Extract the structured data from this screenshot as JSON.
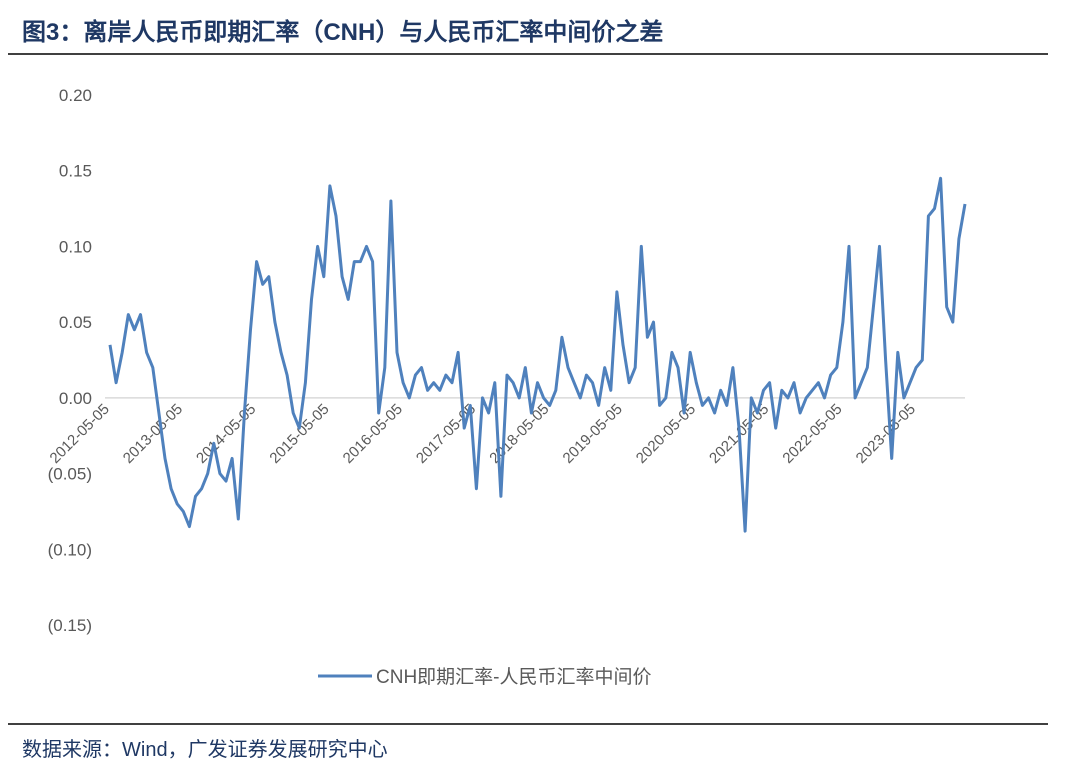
{
  "header": {
    "title": "图3：离岸人民币即期汇率（CNH）与人民币汇率中间价之差"
  },
  "chart_data": {
    "type": "line",
    "categories": [
      "2012-05-05",
      null,
      null,
      null,
      null,
      null,
      null,
      null,
      null,
      null,
      null,
      null,
      "2013-05-05",
      null,
      null,
      null,
      null,
      null,
      null,
      null,
      null,
      null,
      null,
      null,
      "2014-05-05",
      null,
      null,
      null,
      null,
      null,
      null,
      null,
      null,
      null,
      null,
      null,
      "2015-05-05",
      null,
      null,
      null,
      null,
      null,
      null,
      null,
      null,
      null,
      null,
      null,
      "2016-05-05",
      null,
      null,
      null,
      null,
      null,
      null,
      null,
      null,
      null,
      null,
      null,
      "2017-05-05",
      null,
      null,
      null,
      null,
      null,
      null,
      null,
      null,
      null,
      null,
      null,
      "2018-05-05",
      null,
      null,
      null,
      null,
      null,
      null,
      null,
      null,
      null,
      null,
      null,
      "2019-05-05",
      null,
      null,
      null,
      null,
      null,
      null,
      null,
      null,
      null,
      null,
      null,
      "2020-05-05",
      null,
      null,
      null,
      null,
      null,
      null,
      null,
      null,
      null,
      null,
      null,
      "2021-05-05",
      null,
      null,
      null,
      null,
      null,
      null,
      null,
      null,
      null,
      null,
      null,
      "2022-05-05",
      null,
      null,
      null,
      null,
      null,
      null,
      null,
      null,
      null,
      null,
      null,
      "2023-05-05",
      null,
      null,
      null,
      null,
      null,
      null,
      null,
      null
    ],
    "series": [
      {
        "name": "CNH即期汇率-人民币汇率中间价",
        "color": "#4f81bd",
        "values": [
          0.035,
          0.01,
          0.03,
          0.055,
          0.045,
          0.055,
          0.03,
          0.02,
          -0.01,
          -0.04,
          -0.06,
          -0.07,
          -0.075,
          -0.085,
          -0.065,
          -0.06,
          -0.05,
          -0.03,
          -0.05,
          -0.055,
          -0.04,
          -0.08,
          -0.01,
          0.045,
          0.09,
          0.075,
          0.08,
          0.05,
          0.03,
          0.015,
          -0.01,
          -0.02,
          0.01,
          0.065,
          0.1,
          0.08,
          0.14,
          0.12,
          0.08,
          0.065,
          0.09,
          0.09,
          0.1,
          0.09,
          -0.01,
          0.02,
          0.13,
          0.03,
          0.01,
          0.0,
          0.015,
          0.02,
          0.005,
          0.01,
          0.005,
          0.015,
          0.01,
          0.03,
          -0.02,
          -0.005,
          -0.06,
          0.0,
          -0.01,
          0.01,
          -0.065,
          0.015,
          0.01,
          0.0,
          0.02,
          -0.01,
          0.01,
          0.0,
          -0.005,
          0.005,
          0.04,
          0.02,
          0.01,
          0.0,
          0.015,
          0.01,
          -0.005,
          0.02,
          0.005,
          0.07,
          0.035,
          0.01,
          0.02,
          0.1,
          0.04,
          0.05,
          -0.005,
          0.0,
          0.03,
          0.02,
          -0.01,
          0.03,
          0.01,
          -0.005,
          0.0,
          -0.01,
          0.005,
          -0.005,
          0.02,
          -0.02,
          -0.088,
          0.0,
          -0.01,
          0.005,
          0.01,
          -0.02,
          0.005,
          0.0,
          0.01,
          -0.01,
          0.0,
          0.005,
          0.01,
          0.0,
          0.015,
          0.02,
          0.05,
          0.1,
          0.0,
          0.01,
          0.02,
          0.06,
          0.1,
          0.025,
          -0.04,
          0.03,
          0.0,
          0.01,
          0.02,
          0.025,
          0.12,
          0.125,
          0.145,
          0.06,
          0.05,
          0.105,
          0.128
        ]
      }
    ],
    "ylim": [
      -0.15,
      0.2
    ],
    "yticks": [
      {
        "value": -0.15,
        "label": "(0.15)"
      },
      {
        "value": -0.1,
        "label": "(0.10)"
      },
      {
        "value": -0.05,
        "label": "(0.05)"
      },
      {
        "value": 0,
        "label": "0.00"
      },
      {
        "value": 0.05,
        "label": "0.05"
      },
      {
        "value": 0.1,
        "label": "0.10"
      },
      {
        "value": 0.15,
        "label": "0.15"
      },
      {
        "value": 0.2,
        "label": "0.20"
      }
    ],
    "legend": "bottom"
  },
  "footer": {
    "source": "数据来源：Wind，广发证券发展研究中心"
  }
}
